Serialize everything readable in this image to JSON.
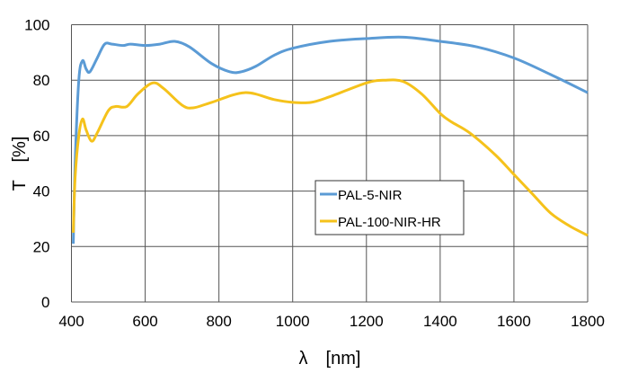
{
  "chart_data": {
    "type": "line",
    "xlabel": "λ　[nm]",
    "ylabel": "T　[%]",
    "xlim": [
      400,
      1800
    ],
    "ylim": [
      0,
      100
    ],
    "xticks": [
      400,
      600,
      800,
      1000,
      1200,
      1400,
      1600,
      1800
    ],
    "yticks": [
      0,
      20,
      40,
      60,
      80,
      100
    ],
    "grid": true,
    "legend_position": "center-right",
    "series": [
      {
        "name": "PAL-5-NIR",
        "color": "#5b9bd5",
        "x": [
          405,
          410,
          420,
          430,
          440,
          450,
          470,
          490,
          510,
          540,
          560,
          600,
          640,
          680,
          720,
          780,
          830,
          860,
          900,
          950,
          1000,
          1100,
          1200,
          1300,
          1400,
          1500,
          1600,
          1700,
          1800
        ],
        "y": [
          21,
          50,
          80,
          87,
          84,
          83,
          88,
          93,
          93,
          92.5,
          93,
          92.5,
          93,
          94,
          92,
          86,
          83,
          83,
          85,
          89,
          91.5,
          94,
          95,
          95.5,
          94,
          92,
          88,
          82,
          75.5
        ]
      },
      {
        "name": "PAL-100-NIR-HR",
        "color": "#f5c21b",
        "x": [
          405,
          410,
          420,
          430,
          440,
          455,
          470,
          500,
          520,
          550,
          580,
          620,
          650,
          700,
          730,
          780,
          870,
          950,
          1000,
          1050,
          1100,
          1200,
          1250,
          1300,
          1350,
          1400,
          1430,
          1480,
          1550,
          1600,
          1650,
          1700,
          1750,
          1800
        ],
        "y": [
          25,
          45,
          60,
          66,
          62,
          58,
          61,
          69,
          70.5,
          70.5,
          75,
          79,
          77,
          71,
          70,
          72,
          75.5,
          73,
          72,
          72,
          74,
          79,
          80,
          79.5,
          75,
          68,
          65,
          61,
          53,
          46,
          39,
          32,
          27.5,
          24
        ]
      }
    ]
  }
}
